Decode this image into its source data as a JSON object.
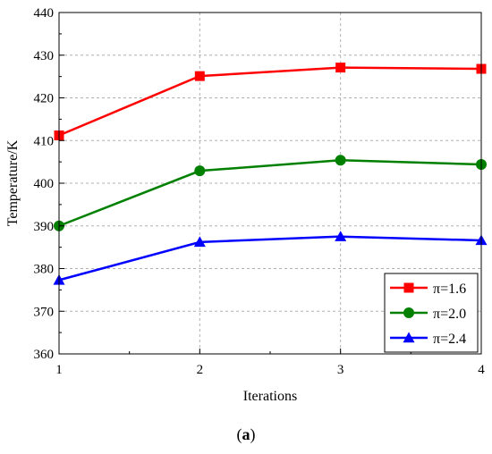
{
  "chart_data": {
    "type": "line",
    "x": [
      1,
      2,
      3,
      4
    ],
    "xlabel": "Iterations",
    "ylabel": "Temperature/K",
    "xlim": [
      1,
      4
    ],
    "ylim": [
      360,
      440
    ],
    "x_ticks": [
      "1",
      "2",
      "3",
      "4"
    ],
    "y_ticks": [
      "360",
      "370",
      "380",
      "390",
      "400",
      "410",
      "420",
      "430",
      "440"
    ],
    "grid": true,
    "legend_position": "bottom-right",
    "series": [
      {
        "name": "π=1.6",
        "color": "#ff0000",
        "marker": "square",
        "values": [
          411.2,
          425.1,
          427.1,
          426.8
        ]
      },
      {
        "name": "π=2.0",
        "color": "#008000",
        "marker": "circle",
        "values": [
          390.0,
          402.9,
          405.4,
          404.4
        ]
      },
      {
        "name": "π=2.4",
        "color": "#0000ff",
        "marker": "triangle",
        "values": [
          377.3,
          386.2,
          387.5,
          386.6
        ]
      }
    ]
  },
  "caption": {
    "open": "(",
    "letter": "a",
    "close": ")"
  }
}
